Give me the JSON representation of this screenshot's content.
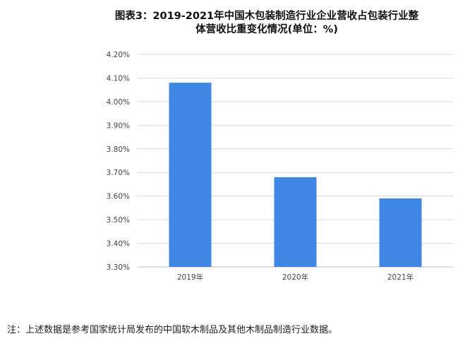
{
  "header": {
    "title_line1": "图表3：2019-2021年中国木包装制造行业企业营收占包装行业整",
    "title_line2": "体营收比重变化情况(单位：%)"
  },
  "note": "注：上述数据是参考国家统计局发布的中国软木制品及其他木制品制造行业数据。",
  "colors": {
    "bar": "#3f87e2",
    "grid": "#d9d9d9",
    "axis": "#bfbfbf"
  },
  "chart_data": {
    "type": "bar",
    "title": "图表3：2019-2021年中国木包装制造行业企业营收占包装行业整体营收比重变化情况(单位：%)",
    "xlabel": "",
    "ylabel": "",
    "categories": [
      "2019年",
      "2020年",
      "2021年"
    ],
    "values": [
      4.08,
      3.68,
      3.59
    ],
    "ylim": [
      3.3,
      4.2
    ],
    "yticks": [
      "3.30%",
      "3.40%",
      "3.50%",
      "3.60%",
      "3.70%",
      "3.80%",
      "3.90%",
      "4.00%",
      "4.10%",
      "4.20%"
    ],
    "grid": true,
    "legend": "none"
  }
}
